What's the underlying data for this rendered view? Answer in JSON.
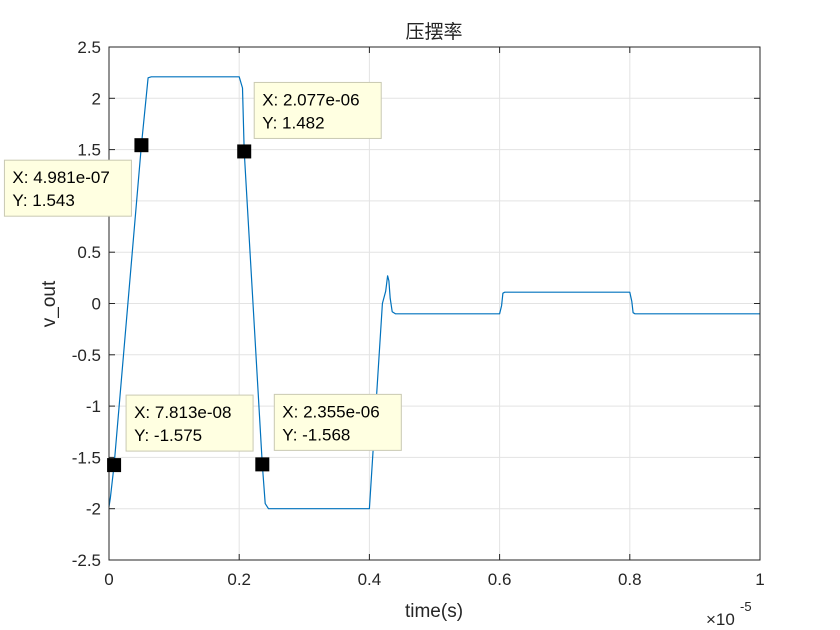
{
  "chart_data": {
    "type": "line",
    "title": "压摆率",
    "xlabel": "time(s)",
    "ylabel": "v_out",
    "x_exponent_base": "×10",
    "x_exponent_power": "-5",
    "xlim": [
      0,
      1
    ],
    "ylim": [
      -2.5,
      2.5
    ],
    "grid": true,
    "xticks": [
      0,
      0.2,
      0.4,
      0.6,
      0.8,
      1
    ],
    "xtick_labels": [
      "0",
      "0.2",
      "0.4",
      "0.6",
      "0.8",
      "1"
    ],
    "yticks": [
      2.5,
      2,
      1.5,
      1,
      0.5,
      0,
      -0.5,
      -1,
      -1.5,
      -2,
      -2.5
    ],
    "ytick_labels": [
      "2.5",
      "2",
      "1.5",
      "1",
      "0.5",
      "0",
      "-0.5",
      "-1",
      "-1.5",
      "-2",
      "-2.5"
    ],
    "series": [
      {
        "color": "#0072BD",
        "x": [
          0,
          0.002,
          0.0078,
          0.0498,
          0.06,
          0.065,
          0.2,
          0.205,
          0.2077,
          0.2355,
          0.24,
          0.245,
          0.25,
          0.4,
          0.42,
          0.425,
          0.428,
          0.43,
          0.432,
          0.435,
          0.44,
          0.6,
          0.603,
          0.605,
          0.608,
          0.8,
          0.803,
          0.805,
          0.808,
          1.0
        ],
        "y": [
          -1.98,
          -1.9,
          -1.575,
          1.543,
          2.2,
          2.21,
          2.21,
          2.1,
          1.482,
          -1.568,
          -1.95,
          -2.0,
          -2.0,
          -2.0,
          0.0,
          0.12,
          0.27,
          0.22,
          0.05,
          -0.08,
          -0.1,
          -0.1,
          -0.02,
          0.1,
          0.11,
          0.11,
          0.02,
          -0.09,
          -0.1,
          -0.1
        ]
      }
    ],
    "datatips": [
      {
        "x": 4.981e-07,
        "y": 1.543,
        "x_text": "X: 4.981e-07",
        "y_text": "Y: 1.543"
      },
      {
        "x": 2.077e-06,
        "y": 1.482,
        "x_text": "X: 2.077e-06",
        "y_text": "Y: 1.482"
      },
      {
        "x": 7.813e-08,
        "y": -1.575,
        "x_text": "X: 7.813e-08",
        "y_text": "Y: -1.575"
      },
      {
        "x": 2.355e-06,
        "y": -1.568,
        "x_text": "X: 2.355e-06",
        "y_text": "Y: -1.568"
      }
    ]
  }
}
